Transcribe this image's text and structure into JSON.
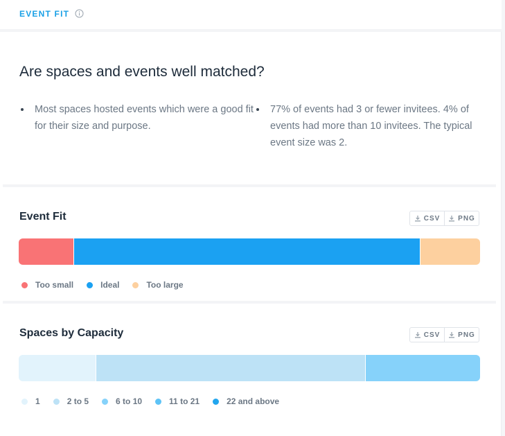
{
  "header": {
    "section_label": "EVENT FIT",
    "info_icon": "info-circle-icon"
  },
  "summary": {
    "headline": "Are spaces and events well matched?",
    "bullets": [
      "Most spaces hosted events which were a good fit for their size and purpose.",
      "77% of events had 3 or fewer invitees. 4% of events had more than 10 invitees. The typical event size was 2."
    ]
  },
  "downloads": {
    "csv_label": "CSV",
    "png_label": "PNG",
    "icon": "download-icon"
  },
  "chart_data": [
    {
      "type": "bar",
      "title": "Event Fit",
      "orientation": "horizontal-stacked",
      "unit": "share",
      "series": [
        {
          "name": "Too small",
          "value": 0.118,
          "color": "#f97375"
        },
        {
          "name": "Ideal",
          "value": 0.752,
          "color": "#1ba1f2"
        },
        {
          "name": "Too large",
          "value": 0.13,
          "color": "#fdd09f"
        }
      ],
      "legend": "bottom-left"
    },
    {
      "type": "bar",
      "title": "Spaces by Capacity",
      "orientation": "horizontal-stacked",
      "unit": "share",
      "series": [
        {
          "name": "1",
          "value": 0.167,
          "color": "#e2f3fc"
        },
        {
          "name": "2 to 5",
          "value": 0.584,
          "color": "#bde2f6"
        },
        {
          "name": "6 to 10",
          "value": 0.249,
          "color": "#86d2fa"
        },
        {
          "name": "11 to 21",
          "value": 0,
          "color": "#5ec3f6"
        },
        {
          "name": "22 and above",
          "value": 0,
          "color": "#22a6ee"
        }
      ],
      "legend": "bottom-left"
    }
  ]
}
